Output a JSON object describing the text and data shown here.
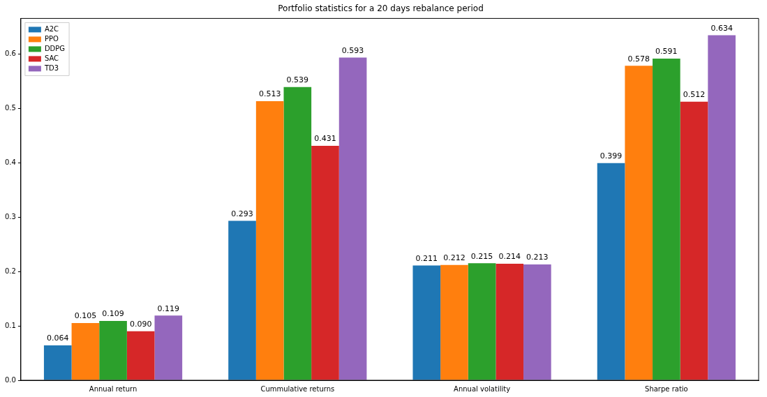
{
  "chart_data": {
    "type": "bar",
    "title": "Portfolio statistics for a 20 days rebalance period",
    "categories": [
      "Annual return",
      "Cummulative returns",
      "Annual volatility",
      "Sharpe ratio"
    ],
    "series": [
      {
        "name": "A2C",
        "color": "#1f77b4",
        "values": [
          0.064,
          0.293,
          0.211,
          0.399
        ],
        "value_labels": [
          "0.064",
          "0.293",
          "0.211",
          "0.399"
        ]
      },
      {
        "name": "PPO",
        "color": "#ff7f0e",
        "values": [
          0.105,
          0.513,
          0.212,
          0.578
        ],
        "value_labels": [
          "0.105",
          "0.513",
          "0.212",
          "0.578"
        ]
      },
      {
        "name": "DDPG",
        "color": "#2ca02c",
        "values": [
          0.109,
          0.539,
          0.215,
          0.591
        ],
        "value_labels": [
          "0.109",
          "0.539",
          "0.215",
          "0.591"
        ]
      },
      {
        "name": "SAC",
        "color": "#d62728",
        "values": [
          0.09,
          0.431,
          0.214,
          0.512
        ],
        "value_labels": [
          "0.090",
          "0.431",
          "0.214",
          "0.512"
        ]
      },
      {
        "name": "TD3",
        "color": "#9467bd",
        "values": [
          0.119,
          0.593,
          0.213,
          0.634
        ],
        "value_labels": [
          "0.119",
          "0.593",
          "0.213",
          "0.634"
        ]
      }
    ],
    "ylim": [
      0,
      0.665
    ],
    "yticks": [
      {
        "value": 0,
        "label": "0.0"
      },
      0.1,
      0.2,
      0.3,
      0.4,
      0.5,
      0.6
    ],
    "legend": "top left"
  }
}
